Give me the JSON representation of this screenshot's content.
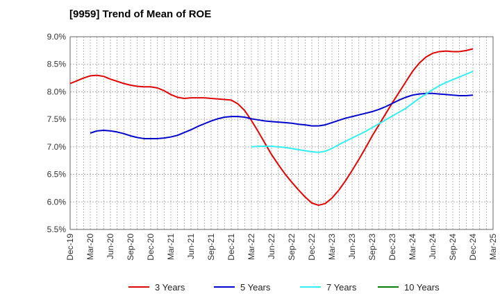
{
  "title": "[9959]  Trend of Mean of ROE",
  "colors": {
    "three_years": "#e00000",
    "five_years": "#0000cc",
    "seven_years": "#33eeee",
    "ten_years": "#008000",
    "grid": "#999999"
  },
  "chart_data": {
    "type": "line",
    "title": "[9959]  Trend of Mean of ROE",
    "xlabel": "",
    "ylabel": "",
    "ylim": [
      5.5,
      9.0
    ],
    "grid": true,
    "legend_position": "bottom",
    "x_tick_labels": [
      "Dec-19",
      "Mar-20",
      "Jun-20",
      "Sep-20",
      "Dec-20",
      "Mar-21",
      "Jun-21",
      "Sep-21",
      "Dec-21",
      "Mar-22",
      "Jun-22",
      "Sep-22",
      "Dec-22",
      "Mar-23",
      "Jun-23",
      "Sep-23",
      "Dec-23",
      "Mar-24",
      "Jun-24",
      "Sep-24",
      "Dec-24",
      "Mar-25"
    ],
    "y_tick_labels": [
      "9.0%",
      "8.5%",
      "8.0%",
      "7.5%",
      "7.0%",
      "6.5%",
      "6.0%",
      "5.5%"
    ],
    "y_ticks": [
      9.0,
      8.5,
      8.0,
      7.5,
      7.0,
      6.5,
      6.0,
      5.5
    ],
    "x_start": "2019-12",
    "x_end": "2025-03",
    "series": [
      {
        "name": "3 Years",
        "color": "#e00000",
        "points": [
          [
            "2019-12",
            8.15
          ],
          [
            "2020-01",
            8.2
          ],
          [
            "2020-02",
            8.25
          ],
          [
            "2020-03",
            8.29
          ],
          [
            "2020-04",
            8.3
          ],
          [
            "2020-05",
            8.28
          ],
          [
            "2020-06",
            8.23
          ],
          [
            "2020-07",
            8.19
          ],
          [
            "2020-08",
            8.15
          ],
          [
            "2020-09",
            8.12
          ],
          [
            "2020-10",
            8.1
          ],
          [
            "2020-11",
            8.09
          ],
          [
            "2020-12",
            8.09
          ],
          [
            "2021-01",
            8.07
          ],
          [
            "2021-02",
            8.02
          ],
          [
            "2021-03",
            7.95
          ],
          [
            "2021-04",
            7.9
          ],
          [
            "2021-05",
            7.88
          ],
          [
            "2021-06",
            7.89
          ],
          [
            "2021-07",
            7.89
          ],
          [
            "2021-08",
            7.89
          ],
          [
            "2021-09",
            7.88
          ],
          [
            "2021-10",
            7.87
          ],
          [
            "2021-11",
            7.86
          ],
          [
            "2021-12",
            7.85
          ],
          [
            "2022-01",
            7.78
          ],
          [
            "2022-02",
            7.66
          ],
          [
            "2022-03",
            7.48
          ],
          [
            "2022-04",
            7.28
          ],
          [
            "2022-05",
            7.07
          ],
          [
            "2022-06",
            6.86
          ],
          [
            "2022-07",
            6.68
          ],
          [
            "2022-08",
            6.51
          ],
          [
            "2022-09",
            6.36
          ],
          [
            "2022-10",
            6.22
          ],
          [
            "2022-11",
            6.09
          ],
          [
            "2022-12",
            5.98
          ],
          [
            "2023-01",
            5.94
          ],
          [
            "2023-02",
            5.97
          ],
          [
            "2023-03",
            6.07
          ],
          [
            "2023-04",
            6.21
          ],
          [
            "2023-05",
            6.38
          ],
          [
            "2023-06",
            6.57
          ],
          [
            "2023-07",
            6.77
          ],
          [
            "2023-08",
            6.98
          ],
          [
            "2023-09",
            7.2
          ],
          [
            "2023-10",
            7.4
          ],
          [
            "2023-11",
            7.6
          ],
          [
            "2023-12",
            7.8
          ],
          [
            "2024-01",
            7.99
          ],
          [
            "2024-02",
            8.18
          ],
          [
            "2024-03",
            8.37
          ],
          [
            "2024-04",
            8.52
          ],
          [
            "2024-05",
            8.63
          ],
          [
            "2024-06",
            8.7
          ],
          [
            "2024-07",
            8.73
          ],
          [
            "2024-08",
            8.74
          ],
          [
            "2024-09",
            8.73
          ],
          [
            "2024-10",
            8.73
          ],
          [
            "2024-11",
            8.75
          ],
          [
            "2024-12",
            8.78
          ]
        ]
      },
      {
        "name": "5 Years",
        "color": "#0000cc",
        "points": [
          [
            "2020-03",
            7.25
          ],
          [
            "2020-04",
            7.29
          ],
          [
            "2020-05",
            7.3
          ],
          [
            "2020-06",
            7.29
          ],
          [
            "2020-07",
            7.27
          ],
          [
            "2020-08",
            7.24
          ],
          [
            "2020-09",
            7.2
          ],
          [
            "2020-10",
            7.17
          ],
          [
            "2020-11",
            7.15
          ],
          [
            "2020-12",
            7.15
          ],
          [
            "2021-01",
            7.15
          ],
          [
            "2021-02",
            7.16
          ],
          [
            "2021-03",
            7.18
          ],
          [
            "2021-04",
            7.21
          ],
          [
            "2021-05",
            7.26
          ],
          [
            "2021-06",
            7.31
          ],
          [
            "2021-07",
            7.37
          ],
          [
            "2021-08",
            7.42
          ],
          [
            "2021-09",
            7.47
          ],
          [
            "2021-10",
            7.51
          ],
          [
            "2021-11",
            7.54
          ],
          [
            "2021-12",
            7.55
          ],
          [
            "2022-01",
            7.55
          ],
          [
            "2022-02",
            7.54
          ],
          [
            "2022-03",
            7.51
          ],
          [
            "2022-04",
            7.49
          ],
          [
            "2022-05",
            7.47
          ],
          [
            "2022-06",
            7.46
          ],
          [
            "2022-07",
            7.45
          ],
          [
            "2022-08",
            7.44
          ],
          [
            "2022-09",
            7.43
          ],
          [
            "2022-10",
            7.41
          ],
          [
            "2022-11",
            7.4
          ],
          [
            "2022-12",
            7.38
          ],
          [
            "2023-01",
            7.38
          ],
          [
            "2023-02",
            7.4
          ],
          [
            "2023-03",
            7.44
          ],
          [
            "2023-04",
            7.48
          ],
          [
            "2023-05",
            7.52
          ],
          [
            "2023-06",
            7.55
          ],
          [
            "2023-07",
            7.58
          ],
          [
            "2023-08",
            7.61
          ],
          [
            "2023-09",
            7.64
          ],
          [
            "2023-10",
            7.68
          ],
          [
            "2023-11",
            7.73
          ],
          [
            "2023-12",
            7.79
          ],
          [
            "2024-01",
            7.85
          ],
          [
            "2024-02",
            7.9
          ],
          [
            "2024-03",
            7.94
          ],
          [
            "2024-04",
            7.96
          ],
          [
            "2024-05",
            7.97
          ],
          [
            "2024-06",
            7.97
          ],
          [
            "2024-07",
            7.96
          ],
          [
            "2024-08",
            7.95
          ],
          [
            "2024-09",
            7.94
          ],
          [
            "2024-10",
            7.93
          ],
          [
            "2024-11",
            7.93
          ],
          [
            "2024-12",
            7.94
          ]
        ]
      },
      {
        "name": "7 Years",
        "color": "#33eeee",
        "points": [
          [
            "2022-03",
            7.0
          ],
          [
            "2022-04",
            7.01
          ],
          [
            "2022-05",
            7.01
          ],
          [
            "2022-06",
            7.01
          ],
          [
            "2022-07",
            7.0
          ],
          [
            "2022-08",
            6.99
          ],
          [
            "2022-09",
            6.97
          ],
          [
            "2022-10",
            6.95
          ],
          [
            "2022-11",
            6.93
          ],
          [
            "2022-12",
            6.91
          ],
          [
            "2023-01",
            6.9
          ],
          [
            "2023-02",
            6.92
          ],
          [
            "2023-03",
            6.97
          ],
          [
            "2023-04",
            7.04
          ],
          [
            "2023-05",
            7.1
          ],
          [
            "2023-06",
            7.16
          ],
          [
            "2023-07",
            7.22
          ],
          [
            "2023-08",
            7.28
          ],
          [
            "2023-09",
            7.35
          ],
          [
            "2023-10",
            7.42
          ],
          [
            "2023-11",
            7.49
          ],
          [
            "2023-12",
            7.56
          ],
          [
            "2024-01",
            7.63
          ],
          [
            "2024-02",
            7.7
          ],
          [
            "2024-03",
            7.79
          ],
          [
            "2024-04",
            7.88
          ],
          [
            "2024-05",
            7.96
          ],
          [
            "2024-06",
            8.04
          ],
          [
            "2024-07",
            8.11
          ],
          [
            "2024-08",
            8.17
          ],
          [
            "2024-09",
            8.22
          ],
          [
            "2024-10",
            8.27
          ],
          [
            "2024-11",
            8.32
          ],
          [
            "2024-12",
            8.37
          ]
        ]
      },
      {
        "name": "10 Years",
        "color": "#008000",
        "points": []
      }
    ]
  }
}
